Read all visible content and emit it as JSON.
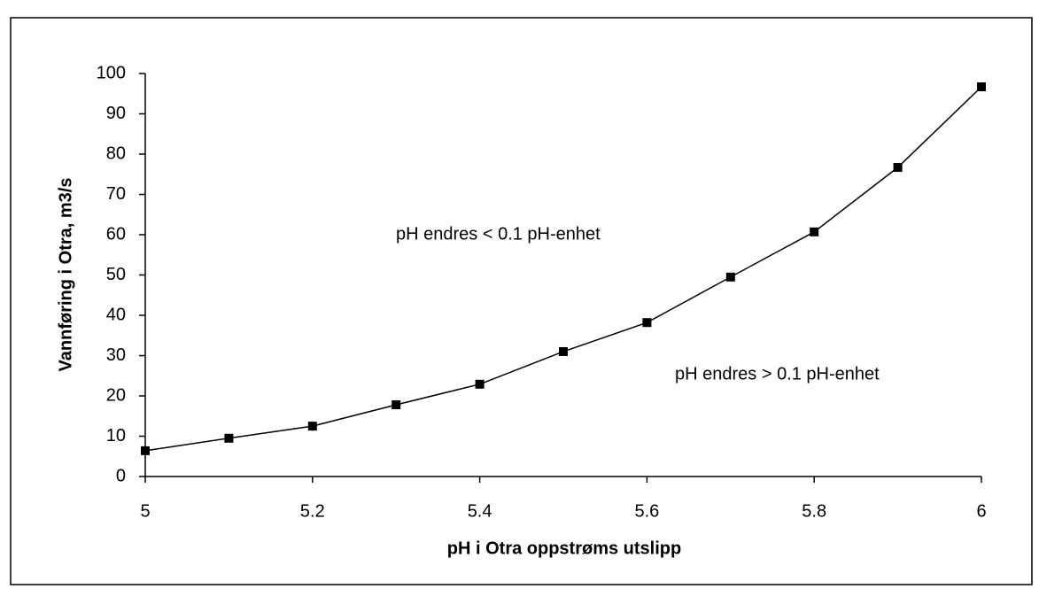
{
  "chart_data": {
    "type": "line",
    "x_label": "pH i Otra oppstrøms utslipp",
    "y_label": "Vannføring i Otra, m3/s",
    "annotations": [
      "pH endres < 0.1 pH-enhet",
      "pH endres > 0.1 pH-enhet"
    ],
    "x": [
      5.0,
      5.1,
      5.2,
      5.3,
      5.4,
      5.5,
      5.6,
      5.7,
      5.8,
      5.9,
      6.0
    ],
    "series": [
      {
        "color": "#000000",
        "values": [
          6.4,
          9.5,
          12.5,
          17.8,
          22.9,
          31,
          38.2,
          49.5,
          60.7,
          76.7,
          96.7
        ]
      }
    ],
    "xlim": [
      5,
      6
    ],
    "xticks": [
      5,
      5.2,
      5.4,
      5.6,
      5.8,
      6
    ],
    "ylim": [
      0,
      100
    ],
    "yticks": [
      0,
      10,
      20,
      30,
      40,
      50,
      60,
      70,
      80,
      90,
      100
    ],
    "grid": false
  }
}
